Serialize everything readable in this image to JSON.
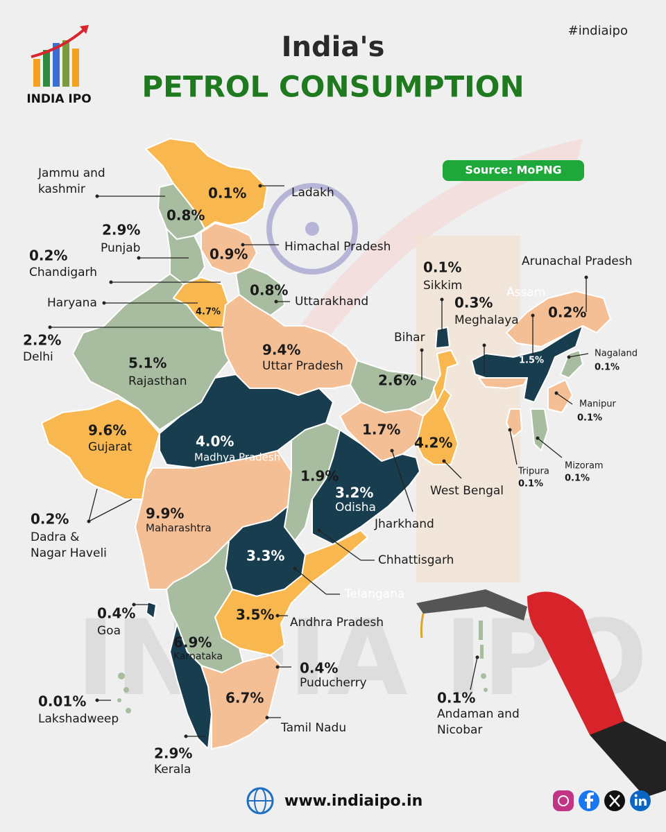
{
  "header": {
    "logo": "INDIA IPO",
    "title_line1": "India's",
    "title_line2": "PETROL CONSUMPTION",
    "hashtag": "#indiaipo",
    "source": "Source: MoPNG"
  },
  "watermark": "INDIA IPO",
  "states": [
    {
      "name": [
        "Ladakh"
      ],
      "share": "0.1%"
    },
    {
      "name": [
        "Jammu and",
        "kashmir"
      ],
      "share": "0.8%"
    },
    {
      "name": [
        "Himachal Pradesh"
      ],
      "share": "0.9%"
    },
    {
      "name": [
        "Punjab"
      ],
      "share": "2.9%"
    },
    {
      "name": [
        "Chandigarh"
      ],
      "share": "0.2%"
    },
    {
      "name": [
        "Haryana"
      ],
      "share": "4.7%"
    },
    {
      "name": [
        "Uttarakhand"
      ],
      "share": "0.8%"
    },
    {
      "name": [
        "Delhi"
      ],
      "share": "2.2%"
    },
    {
      "name": [
        "Rajasthan"
      ],
      "share": "5.1%"
    },
    {
      "name": [
        "Uttar Pradesh"
      ],
      "share": "9.4%"
    },
    {
      "name": [
        "Gujarat"
      ],
      "share": "9.6%"
    },
    {
      "name": [
        "Madhya Pradesh"
      ],
      "share": "4.0%"
    },
    {
      "name": [
        "Bihar"
      ],
      "share": "2.6%"
    },
    {
      "name": [
        "Jharkhand"
      ],
      "share": "1.7%"
    },
    {
      "name": [
        "West Bengal"
      ],
      "share": "4.2%"
    },
    {
      "name": [
        "Chhattisgarh"
      ],
      "share": "1.9%"
    },
    {
      "name": [
        "Odisha"
      ],
      "share": "3.2%"
    },
    {
      "name": [
        "Maharashtra"
      ],
      "share": "9.9%"
    },
    {
      "name": [
        "Dadra &",
        "Nagar Haveli"
      ],
      "share": "0.2%"
    },
    {
      "name": [
        "Telangana"
      ],
      "share": "3.3%"
    },
    {
      "name": [
        "Andhra Pradesh"
      ],
      "share": "3.5%"
    },
    {
      "name": [
        "Goa"
      ],
      "share": "0.4%"
    },
    {
      "name": [
        "Karnataka"
      ],
      "share": "6.9%"
    },
    {
      "name": [
        "Puducherry"
      ],
      "share": "0.4%"
    },
    {
      "name": [
        "Tamil Nadu"
      ],
      "share": "6.7%"
    },
    {
      "name": [
        "Lakshadweep"
      ],
      "share": "0.01%"
    },
    {
      "name": [
        "Kerala"
      ],
      "share": "2.9%"
    },
    {
      "name": [
        "Sikkim"
      ],
      "share": "0.1%"
    },
    {
      "name": [
        "Meghalaya"
      ],
      "share": "0.3%"
    },
    {
      "name": [
        "Arunachal Pradesh"
      ],
      "share": "0.2%"
    },
    {
      "name": [
        "Assam"
      ],
      "share": "1.5%"
    },
    {
      "name": [
        "Nagaland"
      ],
      "share": "0.1%"
    },
    {
      "name": [
        "Manipur"
      ],
      "share": "0.1%"
    },
    {
      "name": [
        "Tripura"
      ],
      "share": "0.1%"
    },
    {
      "name": [
        "Mizoram"
      ],
      "share": "0.1%"
    },
    {
      "name": [
        "Andaman and",
        "Nicobar"
      ],
      "share": "0.1%"
    }
  ],
  "footer": {
    "website": "www.indiaipo.in"
  }
}
